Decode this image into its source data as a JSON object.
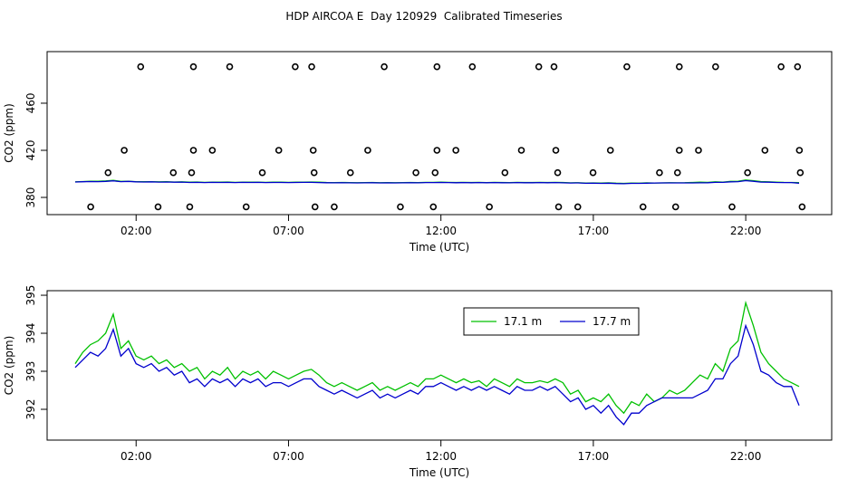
{
  "chart_data": [
    {
      "type": "scatter",
      "title": "HDP AIRCOA E  Day 120929  Calibrated Timeseries",
      "xlabel": "Time (UTC)",
      "ylabel": "CO2 (ppm)",
      "color": "#000000",
      "x": [
        2.15,
        3.88,
        5.07,
        7.22,
        7.76,
        10.14,
        11.87,
        13.03,
        15.21,
        15.71,
        18.1,
        19.82,
        21.01,
        23.16,
        23.7,
        1.61,
        3.88,
        4.5,
        6.68,
        7.81,
        9.6,
        11.87,
        12.49,
        14.64,
        15.77,
        17.56,
        19.82,
        20.45,
        22.63,
        23.76,
        1.08,
        3.22,
        3.82,
        6.14,
        7.84,
        9.03,
        11.18,
        11.81,
        14.1,
        15.83,
        16.99,
        19.17,
        19.76,
        22.06,
        23.79,
        0.51,
        2.72,
        3.76,
        5.61,
        7.87,
        8.5,
        10.67,
        11.75,
        13.59,
        15.86,
        16.49,
        18.63,
        19.7,
        21.55,
        23.85
      ],
      "values": [
        491,
        491,
        491,
        491,
        491,
        491,
        491,
        491,
        491,
        491,
        491,
        491,
        491,
        491,
        491,
        420,
        420,
        420,
        420,
        420,
        420,
        420,
        420,
        420,
        420,
        420,
        420,
        420,
        420,
        420,
        401,
        401,
        401,
        401,
        401,
        401,
        401,
        401,
        401,
        401,
        401,
        401,
        401,
        401,
        401,
        372,
        372,
        372,
        372,
        372,
        372,
        372,
        372,
        372,
        372,
        372,
        372,
        372,
        372,
        372
      ],
      "xlim": [
        -0.92,
        24.82
      ],
      "xticks": [
        {
          "value": 2,
          "label": "02:00"
        },
        {
          "value": 7,
          "label": "07:00"
        },
        {
          "value": 12,
          "label": "12:00"
        },
        {
          "value": 17,
          "label": "17:00"
        },
        {
          "value": 22,
          "label": "22:00"
        }
      ],
      "ylim": [
        365.4,
        503.8
      ],
      "yticks": [
        380,
        420,
        460
      ]
    },
    {
      "type": "line",
      "xlabel": "Time (UTC)",
      "ylabel": "CO2 (ppm)",
      "legend": "top",
      "x": [
        0,
        0.25,
        0.5,
        0.75,
        1,
        1.25,
        1.5,
        1.75,
        2,
        2.25,
        2.5,
        2.75,
        3,
        3.25,
        3.5,
        3.75,
        4,
        4.25,
        4.5,
        4.75,
        5,
        5.25,
        5.5,
        5.75,
        6,
        6.25,
        6.5,
        6.75,
        7,
        7.25,
        7.5,
        7.75,
        8,
        8.25,
        8.5,
        8.75,
        9,
        9.25,
        9.5,
        9.75,
        10,
        10.25,
        10.5,
        10.75,
        11,
        11.25,
        11.5,
        11.75,
        12,
        12.25,
        12.5,
        12.75,
        13,
        13.25,
        13.5,
        13.75,
        14,
        14.25,
        14.5,
        14.75,
        15,
        15.25,
        15.5,
        15.75,
        16,
        16.25,
        16.5,
        16.75,
        17,
        17.25,
        17.5,
        17.75,
        18,
        18.25,
        18.5,
        18.75,
        19,
        19.25,
        19.5,
        19.75,
        20,
        20.25,
        20.5,
        20.75,
        21,
        21.25,
        21.5,
        21.75,
        22,
        22.25,
        22.5,
        22.75,
        23,
        23.25,
        23.5,
        23.75
      ],
      "series": [
        {
          "name": "17.1 m",
          "color": "#00c000",
          "values": [
            393.2,
            393.5,
            393.7,
            393.8,
            394.0,
            394.5,
            393.6,
            393.8,
            393.4,
            393.3,
            393.4,
            393.2,
            393.3,
            393.1,
            393.2,
            393.0,
            393.1,
            392.8,
            393.0,
            392.9,
            393.1,
            392.8,
            393.0,
            392.9,
            393.0,
            392.8,
            393.0,
            392.9,
            392.8,
            392.9,
            393.0,
            393.05,
            392.9,
            392.7,
            392.6,
            392.7,
            392.6,
            392.5,
            392.6,
            392.7,
            392.5,
            392.6,
            392.5,
            392.6,
            392.7,
            392.6,
            392.8,
            392.8,
            392.9,
            392.8,
            392.7,
            392.8,
            392.7,
            392.75,
            392.6,
            392.8,
            392.7,
            392.6,
            392.8,
            392.7,
            392.7,
            392.75,
            392.7,
            392.8,
            392.7,
            392.4,
            392.5,
            392.2,
            392.3,
            392.2,
            392.4,
            392.1,
            391.9,
            392.2,
            392.1,
            392.4,
            392.2,
            392.3,
            392.5,
            392.4,
            392.5,
            392.7,
            392.9,
            392.8,
            393.2,
            393.0,
            393.6,
            393.8,
            394.8,
            394.2,
            393.5,
            393.2,
            393.0,
            392.8,
            392.7,
            392.6
          ]
        },
        {
          "name": "17.7 m",
          "color": "#0000cd",
          "values": [
            393.1,
            393.3,
            393.5,
            393.4,
            393.6,
            394.1,
            393.4,
            393.6,
            393.2,
            393.1,
            393.2,
            393.0,
            393.1,
            392.9,
            393.0,
            392.7,
            392.8,
            392.6,
            392.8,
            392.7,
            392.8,
            392.6,
            392.8,
            392.7,
            392.8,
            392.6,
            392.7,
            392.7,
            392.6,
            392.7,
            392.8,
            392.8,
            392.6,
            392.5,
            392.4,
            392.5,
            392.4,
            392.3,
            392.4,
            392.5,
            392.3,
            392.4,
            392.3,
            392.4,
            392.5,
            392.4,
            392.6,
            392.6,
            392.7,
            392.6,
            392.5,
            392.6,
            392.5,
            392.6,
            392.5,
            392.6,
            392.5,
            392.4,
            392.6,
            392.5,
            392.5,
            392.6,
            392.5,
            392.6,
            392.4,
            392.2,
            392.3,
            392.0,
            392.1,
            391.9,
            392.1,
            391.8,
            391.6,
            391.9,
            391.9,
            392.1,
            392.2,
            392.3,
            392.3,
            392.3,
            392.3,
            392.3,
            392.4,
            392.5,
            392.8,
            392.8,
            393.2,
            393.4,
            394.2,
            393.7,
            393.0,
            392.9,
            392.7,
            392.6,
            392.6,
            392.1
          ]
        }
      ],
      "xlim": [
        -0.92,
        24.82
      ],
      "xticks": [
        {
          "value": 2,
          "label": "02:00"
        },
        {
          "value": 7,
          "label": "07:00"
        },
        {
          "value": 12,
          "label": "12:00"
        },
        {
          "value": 17,
          "label": "17:00"
        },
        {
          "value": 22,
          "label": "22:00"
        }
      ],
      "ylim": [
        391.19,
        395.12
      ],
      "yticks": [
        392,
        393,
        394,
        395
      ]
    }
  ]
}
